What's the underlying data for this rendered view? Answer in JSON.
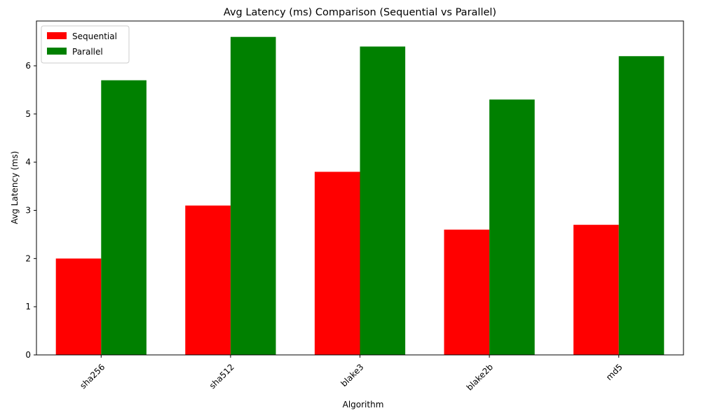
{
  "chart_data": {
    "type": "bar",
    "title": "Avg Latency (ms) Comparison (Sequential vs Parallel)",
    "xlabel": "Algorithm",
    "ylabel": "Avg Latency (ms)",
    "categories": [
      "sha256",
      "sha512",
      "blake3",
      "blake2b",
      "md5"
    ],
    "series": [
      {
        "name": "Sequential",
        "color": "#ff0000",
        "values": [
          2.0,
          3.1,
          3.8,
          2.6,
          2.7
        ]
      },
      {
        "name": "Parallel",
        "color": "#008000",
        "values": [
          5.7,
          6.6,
          6.4,
          5.3,
          6.2
        ]
      }
    ],
    "ylim": [
      0,
      6.93
    ],
    "yticks": [
      0,
      1,
      2,
      3,
      4,
      5,
      6
    ],
    "xtick_rotation": 45,
    "grid": false,
    "legend_position": "top-left"
  }
}
